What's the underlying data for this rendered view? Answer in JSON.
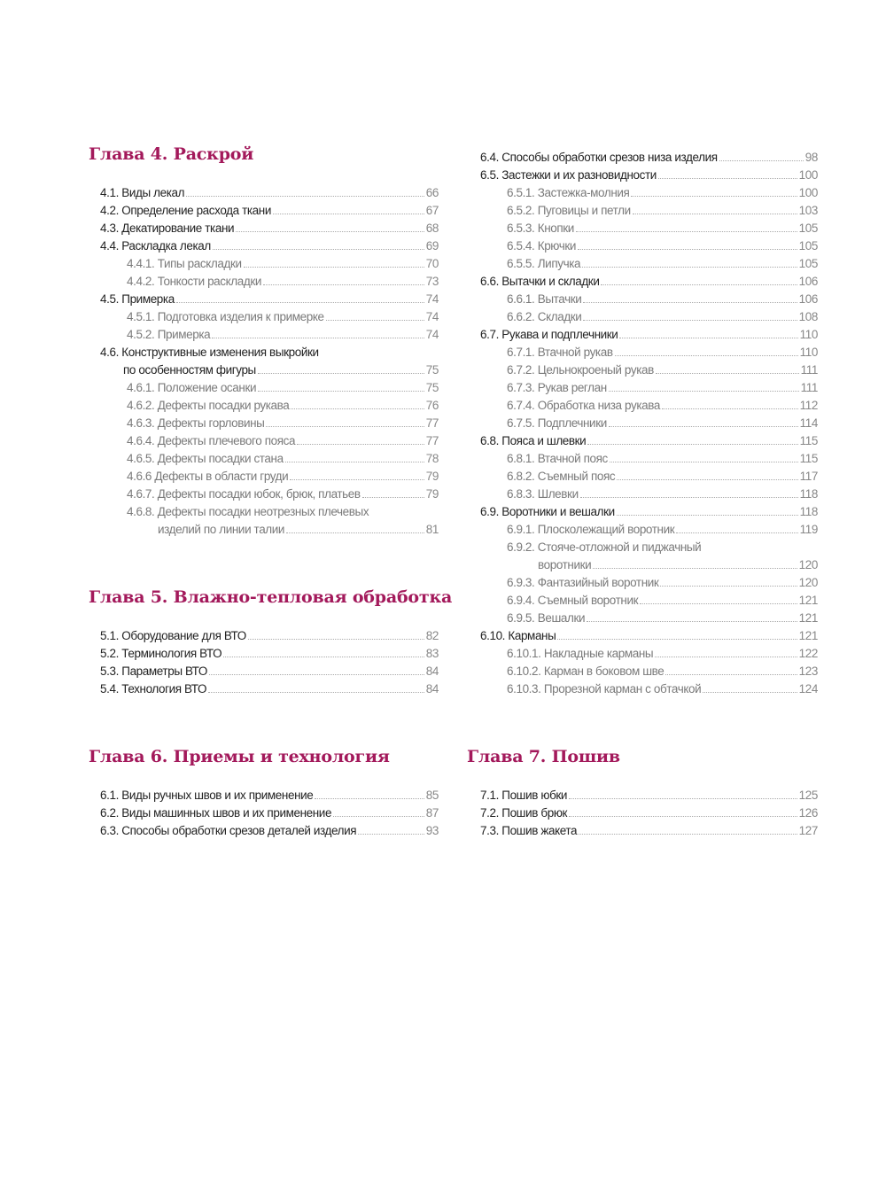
{
  "colors": {
    "chapter_title": "#a3195b",
    "level1_text": "#222222",
    "level2_text": "#7a7a7a"
  },
  "chapters": [
    {
      "title": "Глава 4. Раскрой",
      "entries": [
        {
          "level": 1,
          "text": "4.1. Виды лекал",
          "page": "66"
        },
        {
          "level": 1,
          "text": "4.2. Определение расхода ткани",
          "page": "67"
        },
        {
          "level": 1,
          "text": "4.3. Декатирование ткани",
          "page": "68"
        },
        {
          "level": 1,
          "text": "4.4. Раскладка лекал",
          "page": "69"
        },
        {
          "level": 2,
          "text": "4.4.1. Типы раскладки",
          "page": "70"
        },
        {
          "level": 2,
          "text": "4.4.2. Тонкости раскладки",
          "page": "73"
        },
        {
          "level": 1,
          "text": "4.5. Примерка",
          "page": "74"
        },
        {
          "level": 2,
          "text": "4.5.1. Подготовка изделия к примерке",
          "page": "74"
        },
        {
          "level": 2,
          "text": "4.5.2. Примерка",
          "page": "74"
        },
        {
          "level": 1,
          "text": "4.6. Конструктивные изменения выкройки",
          "cont": "по особенностям фигуры",
          "page": "75"
        },
        {
          "level": 2,
          "text": "4.6.1. Положение осанки",
          "page": "75"
        },
        {
          "level": 2,
          "text": "4.6.2. Дефекты посадки рукава",
          "page": "76"
        },
        {
          "level": 2,
          "text": "4.6.3. Дефекты горловины",
          "page": "77"
        },
        {
          "level": 2,
          "text": "4.6.4. Дефекты плечевого пояса",
          "page": "77"
        },
        {
          "level": 2,
          "text": "4.6.5. Дефекты посадки стана",
          "page": "78"
        },
        {
          "level": 2,
          "text": "4.6.6 Дефекты в области груди",
          "page": "79"
        },
        {
          "level": 2,
          "text": "4.6.7. Дефекты посадки юбок, брюк, платьев",
          "page": "79"
        },
        {
          "level": 2,
          "text": "4.6.8. Дефекты посадки неотрезных плечевых",
          "cont": "изделий по линии талии",
          "page": "81"
        }
      ]
    },
    {
      "title": "Глава 5. Влажно-тепловая обработка",
      "entries": [
        {
          "level": 1,
          "text": "5.1. Оборудование для ВТО",
          "page": "82"
        },
        {
          "level": 1,
          "text": "5.2. Терминология ВТО",
          "page": "83"
        },
        {
          "level": 1,
          "text": "5.3. Параметры ВТО",
          "page": "84"
        },
        {
          "level": 1,
          "text": "5.4. Технология ВТО",
          "page": "84"
        }
      ]
    },
    {
      "title": "Глава 6. Приемы и технология",
      "entries": [
        {
          "level": 1,
          "text": "6.1. Виды ручных швов и их применение",
          "page": "85"
        },
        {
          "level": 1,
          "text": "6.2. Виды машинных швов и их применение",
          "page": "87"
        },
        {
          "level": 1,
          "text": "6.3. Способы обработки срезов деталей изделия",
          "page": "93"
        }
      ],
      "continued_entries": [
        {
          "level": 1,
          "text": "6.4. Способы обработки срезов низа изделия",
          "page": "98"
        },
        {
          "level": 1,
          "text": "6.5. Застежки и их разновидности",
          "page": "100"
        },
        {
          "level": 2,
          "text": "6.5.1. Застежка-молния",
          "page": "100"
        },
        {
          "level": 2,
          "text": "6.5.2. Пуговицы и петли",
          "page": "103"
        },
        {
          "level": 2,
          "text": "6.5.3. Кнопки",
          "page": "105"
        },
        {
          "level": 2,
          "text": "6.5.4. Крючки",
          "page": "105"
        },
        {
          "level": 2,
          "text": "6.5.5. Липучка",
          "page": "105"
        },
        {
          "level": 1,
          "text": "6.6. Вытачки и складки",
          "page": "106"
        },
        {
          "level": 2,
          "text": "6.6.1. Вытачки",
          "page": "106"
        },
        {
          "level": 2,
          "text": "6.6.2. Складки",
          "page": "108"
        },
        {
          "level": 1,
          "text": "6.7. Рукава и подплечники",
          "page": "110"
        },
        {
          "level": 2,
          "text": "6.7.1. Втачной рукав",
          "page": "110"
        },
        {
          "level": 2,
          "text": "6.7.2. Цельнокроеный рукав",
          "page": "111"
        },
        {
          "level": 2,
          "text": "6.7.3. Рукав реглан",
          "page": "111"
        },
        {
          "level": 2,
          "text": "6.7.4. Обработка низа рукава",
          "page": "112"
        },
        {
          "level": 2,
          "text": "6.7.5. Подплечники",
          "page": "114"
        },
        {
          "level": 1,
          "text": "6.8. Пояса и шлевки",
          "page": "115"
        },
        {
          "level": 2,
          "text": "6.8.1. Втачной пояс",
          "page": "115"
        },
        {
          "level": 2,
          "text": "6.8.2. Съемный пояс",
          "page": "117"
        },
        {
          "level": 2,
          "text": "6.8.3. Шлевки",
          "page": "118"
        },
        {
          "level": 1,
          "text": "6.9. Воротники и вешалки",
          "page": "118"
        },
        {
          "level": 2,
          "text": "6.9.1. Плосколежащий воротник",
          "page": "119"
        },
        {
          "level": 2,
          "text": "6.9.2. Стояче-отложной и пиджачный",
          "cont": "воротники",
          "page": "120"
        },
        {
          "level": 2,
          "text": "6.9.3. Фантазийный воротник",
          "page": "120"
        },
        {
          "level": 2,
          "text": "6.9.4. Съемный воротник",
          "page": "121"
        },
        {
          "level": 2,
          "text": "6.9.5. Вешалки",
          "page": "121"
        },
        {
          "level": 1,
          "text": "6.10. Карманы",
          "page": "121"
        },
        {
          "level": 2,
          "text": "6.10.1. Накладные карманы",
          "page": "122"
        },
        {
          "level": 2,
          "text": "6.10.2. Карман в боковом шве",
          "page": "123"
        },
        {
          "level": 2,
          "text": "6.10.3. Прорезной карман с обтачкой",
          "page": "124"
        }
      ]
    },
    {
      "title": "Глава 7. Пошив",
      "entries": [
        {
          "level": 1,
          "text": "7.1. Пошив юбки",
          "page": "125"
        },
        {
          "level": 1,
          "text": "7.2. Пошив брюк",
          "page": "126"
        },
        {
          "level": 1,
          "text": "7.3. Пошив жакета",
          "page": "127"
        }
      ]
    }
  ]
}
